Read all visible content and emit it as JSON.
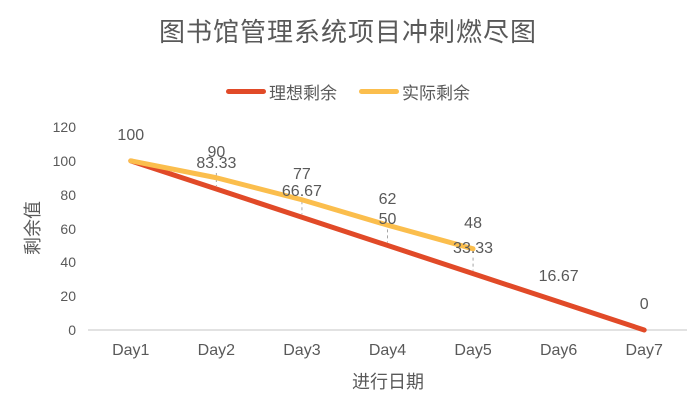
{
  "title": "图书馆管理系统项目冲刺燃尽图",
  "legend": [
    {
      "label": "理想剩余",
      "color": "#E14A28"
    },
    {
      "label": "实际剩余",
      "color": "#FBBE4D"
    }
  ],
  "chart_data": {
    "type": "line",
    "title": "图书馆管理系统项目冲刺燃尽图",
    "categories": [
      "Day1",
      "Day2",
      "Day3",
      "Day4",
      "Day5",
      "Day6",
      "Day7"
    ],
    "series": [
      {
        "name": "理想剩余",
        "color": "#E14A28",
        "values": [
          100,
          83.33,
          66.67,
          50,
          33.33,
          16.67,
          0
        ],
        "labels": [
          "100",
          "83.33",
          "66.67",
          "50",
          "33.33",
          "16.67",
          "0"
        ]
      },
      {
        "name": "实际剩余",
        "color": "#FBBE4D",
        "values": [
          100,
          90,
          77,
          62,
          48,
          null,
          null
        ],
        "labels": [
          null,
          "90",
          "77",
          "62",
          "48",
          null,
          null
        ]
      }
    ],
    "xlabel": "进行日期",
    "ylabel": "剩余值",
    "ylim": [
      0,
      120
    ],
    "ytick_step": 20,
    "yticks": [
      0,
      20,
      40,
      60,
      80,
      100,
      120
    ],
    "grid": false,
    "legend_position": "top",
    "axis_color": "#D9D9D9",
    "leader_line_color": "#A6A6A6",
    "text_color": "#595959"
  }
}
